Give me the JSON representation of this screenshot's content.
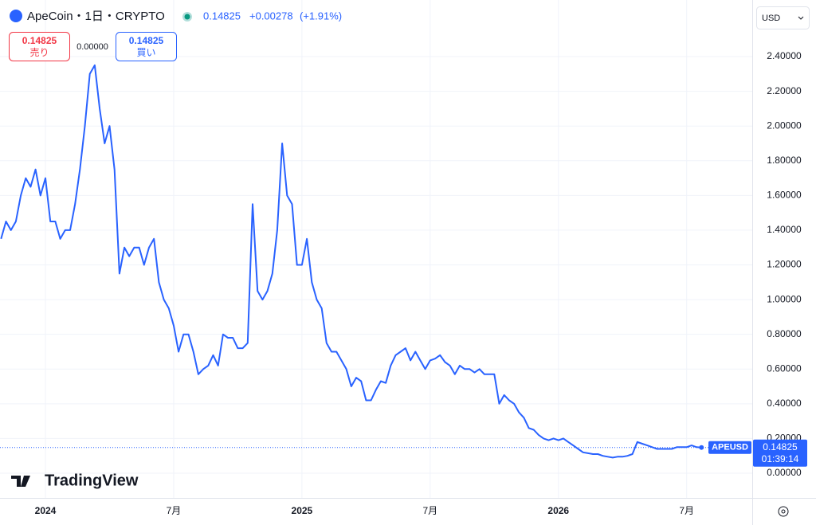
{
  "header": {
    "symbol": "ApeCoin・1日・CRYPTO",
    "price": "0.14825",
    "change": "+0.00278",
    "change_pct": "(+1.91%)",
    "sell_price": "0.14825",
    "sell_label": "売り",
    "spread": "0.00000",
    "buy_price": "0.14825",
    "buy_label": "買い",
    "currency": "USD",
    "ticker": "APEUSD",
    "countdown": "01:39:14",
    "logo": "TradingView"
  },
  "chart_data": {
    "type": "line",
    "color": "#2962ff",
    "grid": true,
    "categories": [
      null,
      null,
      null,
      null,
      null,
      null,
      null,
      null,
      null,
      "2024",
      null,
      null,
      null,
      null,
      null,
      null,
      null,
      null,
      null,
      null,
      null,
      null,
      null,
      null,
      null,
      null,
      null,
      null,
      null,
      null,
      null,
      null,
      null,
      null,
      null,
      "7月",
      null,
      null,
      null,
      null,
      null,
      null,
      null,
      null,
      null,
      null,
      null,
      null,
      null,
      null,
      null,
      null,
      null,
      null,
      null,
      null,
      null,
      null,
      null,
      null,
      null,
      "2025",
      null,
      null,
      null,
      null,
      null,
      null,
      null,
      null,
      null,
      null,
      null,
      null,
      null,
      null,
      null,
      null,
      null,
      null,
      null,
      null,
      null,
      null,
      null,
      null,
      null,
      "7月",
      null,
      null,
      null,
      null,
      null,
      null,
      null,
      null,
      null,
      null,
      null,
      null,
      null,
      null,
      null,
      null,
      null,
      null,
      null,
      null,
      null,
      null,
      null,
      null,
      null,
      "2026",
      null,
      null,
      null,
      null,
      null,
      null,
      null,
      null,
      null,
      null,
      null,
      null,
      null,
      null,
      null,
      null,
      null,
      null,
      null,
      null,
      null,
      null,
      null,
      null,
      null,
      "7月",
      null,
      null,
      null
    ],
    "values": [
      1.35,
      1.45,
      1.4,
      1.45,
      1.6,
      1.7,
      1.65,
      1.75,
      1.6,
      1.7,
      1.45,
      1.45,
      1.35,
      1.4,
      1.4,
      1.55,
      1.75,
      2.0,
      2.3,
      2.35,
      2.1,
      1.9,
      2.0,
      1.75,
      1.15,
      1.3,
      1.25,
      1.3,
      1.3,
      1.2,
      1.3,
      1.35,
      1.1,
      1.0,
      0.95,
      0.85,
      0.7,
      0.8,
      0.8,
      0.7,
      0.57,
      0.6,
      0.62,
      0.68,
      0.62,
      0.8,
      0.78,
      0.78,
      0.72,
      0.72,
      0.75,
      1.55,
      1.05,
      1.0,
      1.05,
      1.15,
      1.4,
      1.9,
      1.6,
      1.55,
      1.2,
      1.2,
      1.35,
      1.1,
      1.0,
      0.95,
      0.75,
      0.7,
      0.7,
      0.65,
      0.6,
      0.5,
      0.55,
      0.53,
      0.42,
      0.42,
      0.48,
      0.53,
      0.52,
      0.62,
      0.68,
      0.7,
      0.72,
      0.65,
      0.7,
      0.65,
      0.6,
      0.65,
      0.66,
      0.68,
      0.64,
      0.62,
      0.57,
      0.62,
      0.6,
      0.6,
      0.58,
      0.6,
      0.57,
      0.57,
      0.57,
      0.4,
      0.45,
      0.42,
      0.4,
      0.35,
      0.32,
      0.26,
      0.25,
      0.22,
      0.2,
      0.19,
      0.2,
      0.19,
      0.2,
      0.18,
      0.16,
      0.14,
      0.12,
      0.115,
      0.11,
      0.11,
      0.1,
      0.095,
      0.09,
      0.095,
      0.095,
      0.1,
      0.11,
      0.18,
      0.17,
      0.16,
      0.15,
      0.14,
      0.14,
      0.14,
      0.14,
      0.15,
      0.15,
      0.15,
      0.16,
      0.15,
      0.14825
    ],
    "ylim": [
      -0.1423,
      2.726
    ],
    "yticks": [
      {
        "value": 0,
        "label": "0.00000"
      },
      {
        "value": 0.2,
        "label": "0.20000"
      },
      {
        "value": 0.4,
        "label": "0.40000"
      },
      {
        "value": 0.6,
        "label": "0.60000"
      },
      {
        "value": 0.8,
        "label": "0.80000"
      },
      {
        "value": 1,
        "label": "1.00000"
      },
      {
        "value": 1.2,
        "label": "1.20000"
      },
      {
        "value": 1.4,
        "label": "1.40000"
      },
      {
        "value": 1.6,
        "label": "1.60000"
      },
      {
        "value": 1.8,
        "label": "1.80000"
      },
      {
        "value": 2,
        "label": "2.00000"
      },
      {
        "value": 2.2,
        "label": "2.20000"
      },
      {
        "value": 2.4,
        "label": "2.40000"
      }
    ]
  }
}
